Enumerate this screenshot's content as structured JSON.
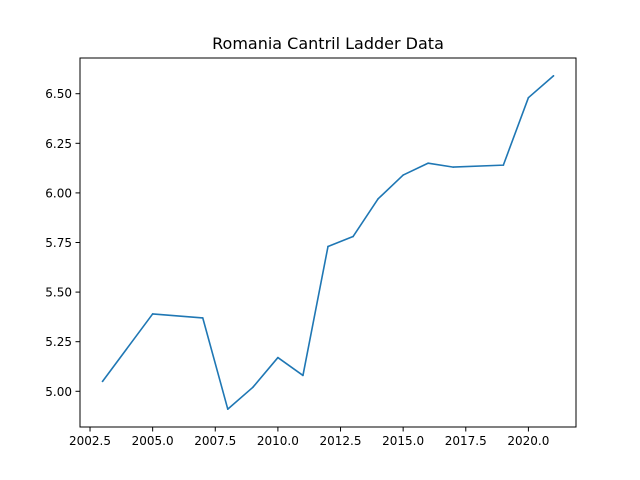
{
  "chart_data": {
    "type": "line",
    "title": "Romania Cantril Ladder Data",
    "xlabel": "",
    "ylabel": "",
    "xlim": [
      2002.1,
      2021.9
    ],
    "ylim": [
      4.82,
      6.68
    ],
    "grid": false,
    "legend": "none",
    "x_ticks": [
      {
        "value": 2002.5,
        "label": "2002.5"
      },
      {
        "value": 2005.0,
        "label": "2005.0"
      },
      {
        "value": 2007.5,
        "label": "2007.5"
      },
      {
        "value": 2010.0,
        "label": "2010.0"
      },
      {
        "value": 2012.5,
        "label": "2012.5"
      },
      {
        "value": 2015.0,
        "label": "2015.0"
      },
      {
        "value": 2017.5,
        "label": "2017.5"
      },
      {
        "value": 2020.0,
        "label": "2020.0"
      }
    ],
    "y_ticks": [
      {
        "value": 5.0,
        "label": "5.00"
      },
      {
        "value": 5.25,
        "label": "5.25"
      },
      {
        "value": 5.5,
        "label": "5.50"
      },
      {
        "value": 5.75,
        "label": "5.75"
      },
      {
        "value": 6.0,
        "label": "6.00"
      },
      {
        "value": 6.25,
        "label": "6.25"
      },
      {
        "value": 6.5,
        "label": "6.50"
      }
    ],
    "series": [
      {
        "color": "#1f77b4",
        "x": [
          2003,
          2005,
          2007,
          2008,
          2009,
          2010,
          2011,
          2012,
          2013,
          2014,
          2015,
          2016,
          2017,
          2019,
          2020,
          2021
        ],
        "y": [
          5.05,
          5.39,
          5.37,
          4.91,
          5.02,
          5.17,
          5.08,
          5.73,
          5.78,
          5.97,
          6.09,
          6.15,
          6.13,
          6.14,
          6.48,
          6.59
        ]
      }
    ]
  }
}
